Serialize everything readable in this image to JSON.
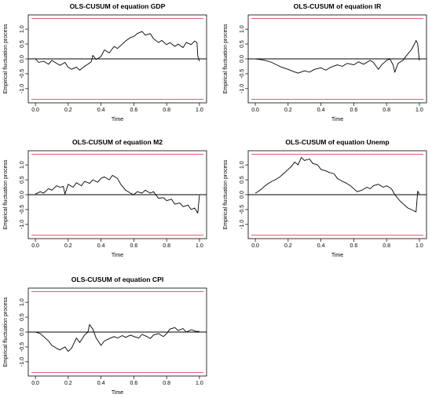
{
  "colors": {
    "bound": "#e0465b",
    "series": "#000000",
    "zero": "#000000",
    "axis": "#000000"
  },
  "chart_data": [
    {
      "type": "line",
      "title": "OLS-CUSUM of equation GDP",
      "xlabel": "Time",
      "ylabel": "Empirical fluctuation process",
      "xlim": [
        0.0,
        1.0
      ],
      "ylim": [
        -1.36,
        1.36
      ],
      "xticks": [
        "0.0",
        "0.2",
        "0.4",
        "0.6",
        "0.8",
        "1.0"
      ],
      "yticks": [
        "-1.0",
        "-0.5",
        "0.0",
        "0.5",
        "1.0"
      ],
      "boundaries": [
        1.36,
        -1.36
      ],
      "grid": false,
      "series": [
        {
          "x": [
            0.0,
            0.02,
            0.05,
            0.08,
            0.1,
            0.13,
            0.15,
            0.18,
            0.2,
            0.22,
            0.25,
            0.27,
            0.3,
            0.32,
            0.34,
            0.35,
            0.37,
            0.4,
            0.42,
            0.45,
            0.48,
            0.5,
            0.53,
            0.55,
            0.58,
            0.6,
            0.62,
            0.65,
            0.67,
            0.7,
            0.72,
            0.75,
            0.77,
            0.8,
            0.82,
            0.85,
            0.87,
            0.9,
            0.92,
            0.95,
            0.97,
            0.985,
            0.99,
            1.0
          ],
          "y": [
            0.0,
            -0.12,
            -0.08,
            -0.18,
            -0.05,
            -0.15,
            -0.22,
            -0.12,
            -0.28,
            -0.35,
            -0.28,
            -0.38,
            -0.25,
            -0.18,
            -0.1,
            0.12,
            -0.02,
            0.08,
            0.3,
            0.2,
            0.42,
            0.35,
            0.5,
            0.6,
            0.72,
            0.75,
            0.85,
            0.92,
            0.8,
            0.85,
            0.68,
            0.55,
            0.62,
            0.48,
            0.55,
            0.42,
            0.5,
            0.38,
            0.55,
            0.48,
            0.6,
            0.55,
            0.1,
            -0.08
          ]
        }
      ]
    },
    {
      "type": "line",
      "title": "OLS-CUSUM of equation IR",
      "xlabel": "Time",
      "ylabel": "Empirical fluctuation process",
      "xlim": [
        0.0,
        1.0
      ],
      "ylim": [
        -1.36,
        1.36
      ],
      "xticks": [
        "0.0",
        "0.2",
        "0.4",
        "0.6",
        "0.8",
        "1.0"
      ],
      "yticks": [
        "-1.0",
        "-0.5",
        "0.0",
        "0.5",
        "1.0"
      ],
      "boundaries": [
        1.36,
        -1.36
      ],
      "grid": false,
      "series": [
        {
          "x": [
            0.0,
            0.03,
            0.06,
            0.1,
            0.13,
            0.16,
            0.2,
            0.23,
            0.26,
            0.3,
            0.33,
            0.36,
            0.4,
            0.43,
            0.46,
            0.5,
            0.53,
            0.56,
            0.6,
            0.63,
            0.66,
            0.7,
            0.72,
            0.75,
            0.77,
            0.8,
            0.82,
            0.84,
            0.85,
            0.87,
            0.9,
            0.92,
            0.95,
            0.97,
            0.98,
            0.99,
            1.0
          ],
          "y": [
            0.0,
            -0.02,
            -0.05,
            -0.12,
            -0.2,
            -0.28,
            -0.35,
            -0.42,
            -0.48,
            -0.4,
            -0.45,
            -0.35,
            -0.3,
            -0.38,
            -0.28,
            -0.2,
            -0.25,
            -0.15,
            -0.2,
            -0.1,
            -0.18,
            -0.05,
            -0.12,
            -0.35,
            -0.2,
            -0.05,
            0.0,
            -0.2,
            -0.45,
            -0.15,
            -0.05,
            0.1,
            0.3,
            0.5,
            0.62,
            0.5,
            -0.05
          ]
        }
      ]
    },
    {
      "type": "line",
      "title": "OLS-CUSUM of equation M2",
      "xlabel": "Time",
      "ylabel": "Empirical fluctuation process",
      "xlim": [
        0.0,
        1.0
      ],
      "ylim": [
        -1.36,
        1.36
      ],
      "xticks": [
        "0.0",
        "0.2",
        "0.4",
        "0.6",
        "0.8",
        "1.0"
      ],
      "yticks": [
        "-1.0",
        "-0.5",
        "0.0",
        "0.5",
        "1.0"
      ],
      "boundaries": [
        1.36,
        -1.36
      ],
      "grid": false,
      "series": [
        {
          "x": [
            0.0,
            0.03,
            0.05,
            0.08,
            0.1,
            0.13,
            0.15,
            0.17,
            0.18,
            0.2,
            0.23,
            0.25,
            0.28,
            0.3,
            0.33,
            0.35,
            0.38,
            0.4,
            0.42,
            0.45,
            0.47,
            0.5,
            0.52,
            0.55,
            0.58,
            0.6,
            0.62,
            0.65,
            0.67,
            0.7,
            0.72,
            0.75,
            0.78,
            0.8,
            0.83,
            0.85,
            0.88,
            0.9,
            0.93,
            0.95,
            0.97,
            0.99,
            1.0
          ],
          "y": [
            0.02,
            0.1,
            0.05,
            0.2,
            0.15,
            0.3,
            0.25,
            0.28,
            0.02,
            0.35,
            0.25,
            0.4,
            0.3,
            0.45,
            0.38,
            0.5,
            0.42,
            0.55,
            0.6,
            0.5,
            0.65,
            0.55,
            0.35,
            0.15,
            0.05,
            0.0,
            0.1,
            0.05,
            0.15,
            0.05,
            0.1,
            -0.12,
            -0.1,
            -0.2,
            -0.15,
            -0.32,
            -0.28,
            -0.4,
            -0.35,
            -0.5,
            -0.45,
            -0.62,
            -0.02
          ]
        }
      ]
    },
    {
      "type": "line",
      "title": "OLS-CUSUM of equation Unemp",
      "xlabel": "Time",
      "ylabel": "Empirical fluctuation process",
      "xlim": [
        0.0,
        1.0
      ],
      "ylim": [
        -1.36,
        1.36
      ],
      "xticks": [
        "0.0",
        "0.2",
        "0.4",
        "0.6",
        "0.8",
        "1.0"
      ],
      "yticks": [
        "-1.0",
        "-0.5",
        "0.0",
        "0.5",
        "1.0"
      ],
      "boundaries": [
        1.36,
        -1.36
      ],
      "grid": false,
      "series": [
        {
          "x": [
            0.0,
            0.02,
            0.04,
            0.06,
            0.08,
            0.1,
            0.12,
            0.15,
            0.17,
            0.2,
            0.22,
            0.24,
            0.26,
            0.28,
            0.3,
            0.33,
            0.35,
            0.38,
            0.4,
            0.43,
            0.45,
            0.48,
            0.5,
            0.53,
            0.55,
            0.58,
            0.6,
            0.62,
            0.65,
            0.68,
            0.7,
            0.72,
            0.75,
            0.78,
            0.8,
            0.83,
            0.85,
            0.88,
            0.9,
            0.93,
            0.95,
            0.98,
            0.99,
            1.0
          ],
          "y": [
            0.05,
            0.12,
            0.2,
            0.3,
            0.38,
            0.45,
            0.5,
            0.6,
            0.7,
            0.85,
            0.95,
            1.1,
            1.0,
            1.25,
            1.15,
            1.2,
            1.05,
            1.0,
            0.85,
            0.8,
            0.75,
            0.7,
            0.55,
            0.45,
            0.4,
            0.3,
            0.2,
            0.1,
            0.15,
            0.25,
            0.2,
            0.3,
            0.35,
            0.25,
            0.3,
            0.2,
            0.0,
            -0.2,
            -0.3,
            -0.45,
            -0.5,
            -0.58,
            0.12,
            0.02
          ]
        }
      ]
    },
    {
      "type": "line",
      "title": "OLS-CUSUM of equation CPI",
      "xlabel": "Time",
      "ylabel": "Empirical fluctuation process",
      "xlim": [
        0.0,
        1.0
      ],
      "ylim": [
        -1.36,
        1.36
      ],
      "xticks": [
        "0.0",
        "0.2",
        "0.4",
        "0.6",
        "0.8",
        "1.0"
      ],
      "yticks": [
        "-1.0",
        "-0.5",
        "0.0",
        "0.5",
        "1.0"
      ],
      "boundaries": [
        1.36,
        -1.36
      ],
      "grid": false,
      "series": [
        {
          "x": [
            0.0,
            0.03,
            0.05,
            0.08,
            0.1,
            0.13,
            0.15,
            0.18,
            0.2,
            0.22,
            0.25,
            0.27,
            0.3,
            0.32,
            0.33,
            0.35,
            0.37,
            0.4,
            0.42,
            0.45,
            0.48,
            0.5,
            0.53,
            0.55,
            0.58,
            0.6,
            0.63,
            0.65,
            0.68,
            0.7,
            0.72,
            0.75,
            0.78,
            0.8,
            0.82,
            0.85,
            0.87,
            0.9,
            0.92,
            0.95,
            0.98,
            1.0
          ],
          "y": [
            0.0,
            -0.05,
            -0.15,
            -0.3,
            -0.45,
            -0.55,
            -0.6,
            -0.5,
            -0.65,
            -0.55,
            -0.2,
            -0.35,
            -0.1,
            0.0,
            0.25,
            0.1,
            -0.2,
            -0.45,
            -0.3,
            -0.22,
            -0.15,
            -0.2,
            -0.12,
            -0.18,
            -0.1,
            -0.15,
            -0.2,
            -0.08,
            -0.15,
            -0.22,
            -0.1,
            -0.05,
            -0.15,
            -0.05,
            0.1,
            0.15,
            0.05,
            0.12,
            0.0,
            0.08,
            0.02,
            0.02
          ]
        }
      ]
    }
  ]
}
